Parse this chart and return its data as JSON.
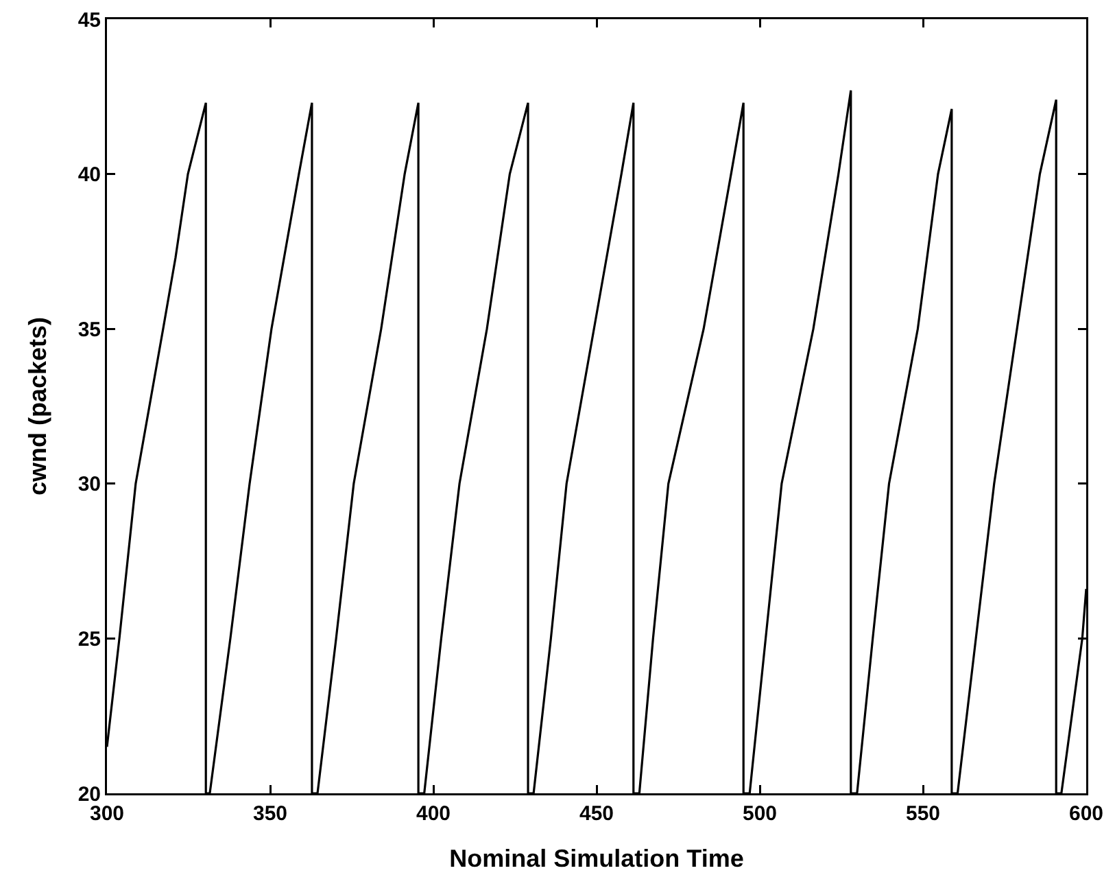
{
  "chart_data": {
    "type": "line",
    "xlabel": "Nominal Simulation Time",
    "ylabel": "cwnd (packets)",
    "xlim": [
      300,
      600
    ],
    "xticks": [
      300,
      350,
      400,
      450,
      500,
      550,
      600
    ],
    "ylim": [
      20,
      45
    ],
    "yticks": [
      20,
      25,
      30,
      35,
      40,
      45
    ],
    "marker": "none",
    "line_style": "solid",
    "series": [
      {
        "color": "#000000",
        "x": [
          300,
          303.8,
          308.8,
          317.2,
          321,
          324.8,
          330.3,
          330.3,
          331.5,
          337.8,
          343.7,
          350.4,
          358.8,
          362.8,
          362.8,
          364.5,
          370.2,
          375.6,
          384,
          391.2,
          395.4,
          395.4,
          397.2,
          402.4,
          408,
          416.4,
          423.4,
          429,
          429,
          430.7,
          436,
          440.8,
          449.2,
          457.6,
          461.3,
          461.3,
          463.1,
          467.3,
          472,
          482.8,
          491.2,
          495,
          495,
          496.9,
          501.8,
          506.7,
          516.4,
          524.1,
          527.9,
          527.9,
          529.8,
          534.6,
          539.6,
          548.4,
          554.6,
          558.8,
          558.8,
          560.6,
          566.2,
          571.8,
          578.8,
          585.8,
          590.8,
          590.8,
          592.4,
          598.8,
          600
        ],
        "values": [
          21.5,
          25,
          30,
          35,
          37.3,
          40,
          42.3,
          20,
          20,
          25,
          30,
          35,
          40,
          42.3,
          20,
          20,
          25,
          30,
          35,
          40,
          42.3,
          20,
          20,
          25,
          30,
          35,
          40,
          42.3,
          20,
          20,
          25,
          30,
          35,
          40,
          42.3,
          20,
          20,
          25,
          30,
          35,
          40,
          42.3,
          20,
          20,
          25,
          30,
          35,
          40,
          42.7,
          20,
          20,
          25,
          30,
          35,
          40,
          42.1,
          20,
          20,
          25,
          30,
          35,
          40,
          42.4,
          20,
          20,
          25,
          26.6
        ]
      }
    ]
  }
}
